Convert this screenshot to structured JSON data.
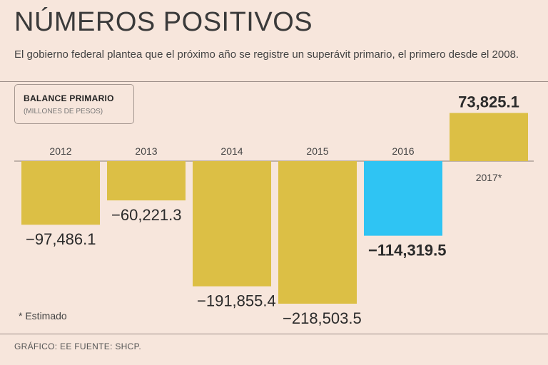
{
  "header": {
    "title": "NÚMEROS POSITIVOS",
    "subtitle": "El gobierno federal plantea que el próximo año se registre un superávit primario, el primero desde el 2008."
  },
  "legend": {
    "title": "BALANCE PRIMARIO",
    "subtitle": "(MILLONES DE PESOS)"
  },
  "note": "* Estimado",
  "source": "GRÁFICO: EE  FUENTE: SHCP.",
  "colors": {
    "default_bar": "#dcbf45",
    "highlight_bar": "#2fc4f3",
    "background": "#f7e6dc"
  },
  "chart_data": {
    "type": "bar",
    "categories": [
      "2012",
      "2013",
      "2014",
      "2015",
      "2016",
      "2017*"
    ],
    "values": [
      -97486.1,
      -60221.3,
      -191855.4,
      -218503.5,
      -114319.5,
      73825.1
    ],
    "value_labels": [
      "−97,486.1",
      "−60,221.3",
      "−191,855.4",
      "−218,503.5",
      "−114,319.5",
      "73,825.1"
    ],
    "bold_labels": [
      "2016",
      "2017*"
    ],
    "highlight": "2016",
    "title": "BALANCE PRIMARIO",
    "ylabel": "MILLONES DE PESOS",
    "ylim": [
      -218503.5,
      73825.1
    ]
  }
}
